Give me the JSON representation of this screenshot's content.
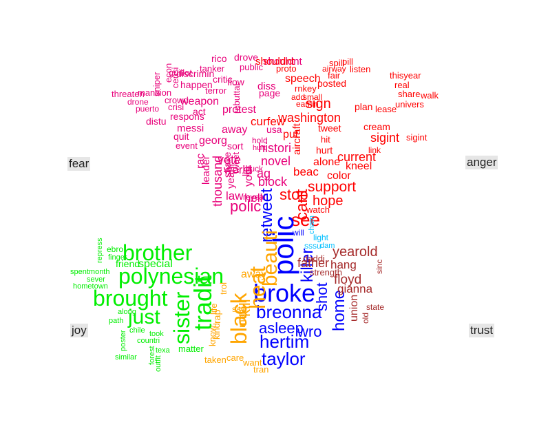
{
  "labels": {
    "fear": "fear",
    "anger": "anger",
    "joy": "joy",
    "trust": "trust"
  },
  "colors": {
    "fear": "#e8007a",
    "anger": "#ff0000",
    "joy": "#00ee00",
    "trust": "#0000ff",
    "sadness": "#ffa500",
    "anticipation": "#a52a2a",
    "surprise": "#00bfff"
  },
  "words": {
    "fear": [
      "threaten",
      "drone",
      "puerto",
      "distu",
      "respons",
      "messi",
      "quit",
      "event",
      "georg",
      "away",
      "sort",
      "terror",
      "act",
      "crisi",
      "mansion",
      "weapon",
      "crowd",
      "happen",
      "discrimin",
      "sniper",
      "guillot",
      "econ",
      "censi",
      "tanker",
      "rico",
      "drove",
      "critic",
      "public",
      "shouldnt",
      "protest",
      "diss",
      "page",
      "flow",
      "rebuttal",
      "histori",
      "thousand",
      "leader",
      "rac",
      "law",
      "hell",
      "your",
      "yeahl",
      "vote",
      "novel",
      "shake",
      "lie",
      "ag",
      "block",
      "world",
      "tweet",
      "fuck",
      "polic",
      "reveal",
      "usa",
      "hold",
      "hurt"
    ],
    "anger": [
      "speech",
      "proto",
      "fair",
      "pill",
      "spill",
      "listen",
      "shouldnt",
      "airway",
      "posted",
      "rnkey",
      "add",
      "eamin",
      "tweet",
      "sign",
      "washington",
      "curfew",
      "cream",
      "plan",
      "univers",
      "lease",
      "real",
      "thisyear",
      "share",
      "walk",
      "sigint",
      "hit",
      "link",
      "hurt",
      "current",
      "kneel",
      "color",
      "alone",
      "beac",
      "support",
      "hope",
      "stop",
      "watch",
      "see",
      "cant",
      "put",
      "aircraft",
      "small",
      "sigint"
    ],
    "joy": [
      "brother",
      "polynesian",
      "brought",
      "just",
      "sister",
      "tradit",
      "special",
      "friend",
      "ebro",
      "finger",
      "repress",
      "spentmonth",
      "sever",
      "hometown",
      "along",
      "path",
      "poster",
      "chile",
      "took",
      "countri",
      "forest",
      "outfit",
      "similar",
      "texa",
      "matter"
    ],
    "trust": [
      "polic",
      "broke",
      "breonna",
      "asleep",
      "hertim",
      "taylor",
      "wro",
      "home",
      "shot",
      "killer",
      "retweet",
      "will"
    ],
    "sadness": [
      "black",
      "heat",
      "beauti",
      "kill",
      "away",
      "mani",
      "rap",
      "taken",
      "care",
      "want",
      "tran",
      "life",
      "trol",
      "kind",
      "say",
      "know"
    ],
    "anticipation": [
      "yearold",
      "father",
      "hang",
      "floyd",
      "gianna",
      "union",
      "state",
      "old",
      "strength",
      "daddi",
      "sinc"
    ],
    "surprise": [
      "light",
      "sssu",
      "cham",
      "dam"
    ]
  }
}
